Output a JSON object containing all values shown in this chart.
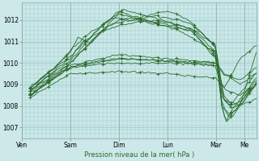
{
  "background_color": "#cce8e8",
  "plot_bg_color": "#cce8e8",
  "grid_color": "#9dcece",
  "line_color": "#2d6a2d",
  "xlabel": "Pression niveau de la mer( hPa )",
  "ylim": [
    1006.5,
    1012.8
  ],
  "xlim": [
    0,
    116
  ],
  "yticks": [
    1007,
    1008,
    1009,
    1010,
    1011,
    1012
  ],
  "xtick_labels": [
    "Ven",
    "Sam",
    "Dim",
    "Lun",
    "Mar",
    "Me"
  ],
  "xtick_positions": [
    0,
    24,
    48,
    72,
    96,
    110
  ],
  "figsize": [
    3.2,
    2.0
  ],
  "dpi": 100
}
